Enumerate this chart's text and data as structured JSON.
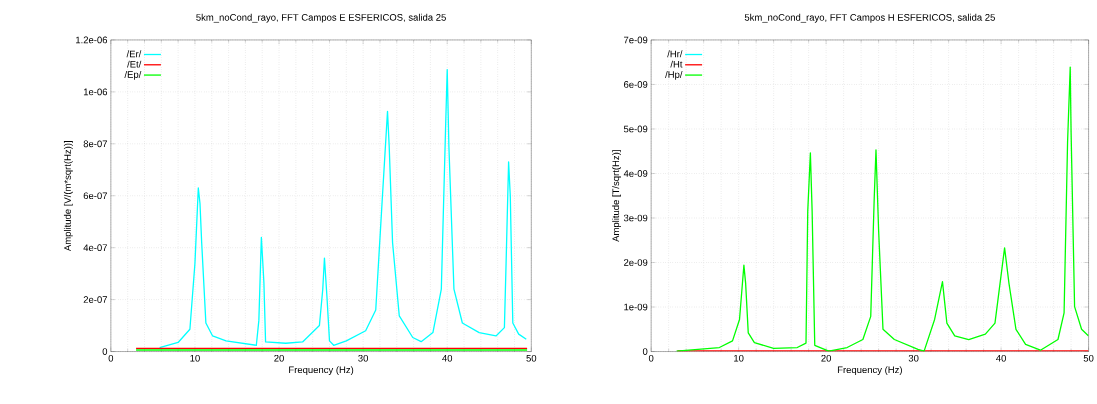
{
  "chart_data": [
    {
      "type": "line",
      "title": "5km_noCond_rayo, FFT Campos E ESFERICOS, salida 25",
      "xlabel": "Frequency (Hz)",
      "ylabel": "Amplitude [V/(m*sqrt(Hz))]",
      "xlim": [
        0,
        50
      ],
      "xticks": [
        0,
        10,
        20,
        30,
        40,
        50
      ],
      "ylim": [
        0,
        1.2e-06
      ],
      "yticks": [
        0,
        {
          "value": 2e-07,
          "label": "2e-07"
        },
        {
          "value": 4e-07,
          "label": "4e-07"
        },
        {
          "value": 6e-07,
          "label": "6e-07"
        },
        {
          "value": 8e-07,
          "label": "8e-07"
        },
        {
          "value": 1e-06,
          "label": "1e-06"
        },
        {
          "value": 1.2e-06,
          "label": "1.2e-06"
        }
      ],
      "grid": true,
      "legend": "top left",
      "series": [
        {
          "name": "/Er/",
          "color": "#00ffff",
          "x": [
            5.8,
            8,
            9.4,
            10.0,
            10.4,
            10.6,
            10.8,
            11.3,
            12.1,
            13.7,
            17.3,
            17.6,
            17.9,
            18.2,
            18.4,
            20.8,
            22.8,
            24.8,
            25.2,
            25.4,
            25.7,
            26.0,
            26.5,
            28.0,
            30.3,
            31.5,
            32.3,
            32.9,
            33.1,
            33.5,
            34.3,
            35.9,
            36.9,
            38.3,
            39.3,
            39.8,
            40.0,
            40.2,
            40.8,
            41.8,
            43.8,
            45.8,
            46.8,
            47.0,
            47.3,
            47.5,
            47.8,
            48.5,
            49.4
          ],
          "values": [
            1.5e-08,
            3.5e-08,
            8.6e-08,
            3.4e-07,
            6.3e-07,
            5.7e-07,
            4.2e-07,
            1.1e-07,
            6e-08,
            4.1e-08,
            2.4e-08,
            1.2e-07,
            4.4e-07,
            2.65e-07,
            3.7e-08,
            3.2e-08,
            3.7e-08,
            1e-07,
            2.4e-07,
            3.6e-07,
            2.1e-07,
            4.1e-08,
            2.4e-08,
            4.1e-08,
            8e-08,
            1.6e-07,
            6e-07,
            9.25e-07,
            7.9e-07,
            4.2e-07,
            1.37e-07,
            5.4e-08,
            3.8e-08,
            7.3e-08,
            2.4e-07,
            8.55e-07,
            1.086e-06,
            7.9e-07,
            2.4e-07,
            1.1e-07,
            7.3e-08,
            6e-08,
            9.2e-08,
            3.4e-07,
            7.3e-07,
            6e-07,
            1.1e-07,
            6.7e-08,
            4.7e-08
          ]
        },
        {
          "name": "/Et/",
          "color": "#ff0000",
          "x": [
            3,
            49.5
          ],
          "values": [
            1.2e-08,
            1.2e-08
          ]
        },
        {
          "name": "/Ep/",
          "color": "#00ff00",
          "x": [
            3,
            49.5
          ],
          "values": [
            6e-09,
            6e-09
          ]
        }
      ]
    },
    {
      "type": "line",
      "title": "5km_noCond_rayo, FFT Campos H ESFERICOS, salida 25",
      "xlabel": "Frequency (Hz)",
      "ylabel": "Amplitude [T/sqrt(Hz)]",
      "xlim": [
        0,
        50
      ],
      "xticks": [
        0,
        10,
        20,
        30,
        40,
        50
      ],
      "ylim": [
        0,
        7e-09
      ],
      "yticks": [
        0,
        {
          "value": 1e-09,
          "label": "1e-09"
        },
        {
          "value": 2e-09,
          "label": "2e-09"
        },
        {
          "value": 3e-09,
          "label": "3e-09"
        },
        {
          "value": 4e-09,
          "label": "4e-09"
        },
        {
          "value": 5e-09,
          "label": "5e-09"
        },
        {
          "value": 6e-09,
          "label": "6e-09"
        },
        {
          "value": 7e-09,
          "label": "7e-09"
        }
      ],
      "grid": true,
      "legend": "top left",
      "series": [
        {
          "name": "/Hr/",
          "color": "#00ffff"
        },
        {
          "name": "/Ht",
          "color": "#ff0000",
          "x": [
            3,
            50
          ],
          "values": [
            1.5e-11,
            1.5e-11
          ]
        },
        {
          "name": "/Hp/",
          "color": "#00ff00",
          "x": [
            2.9,
            7.8,
            9.3,
            10.1,
            10.6,
            10.8,
            11.1,
            11.8,
            14.0,
            16.7,
            17.7,
            17.9,
            18.2,
            18.4,
            18.7,
            20.3,
            22.4,
            24.2,
            25.1,
            25.5,
            25.7,
            26.0,
            26.5,
            27.8,
            30.5,
            31.2,
            32.4,
            33.3,
            33.8,
            34.7,
            36.3,
            38.2,
            39.3,
            40.4,
            40.9,
            41.7,
            42.8,
            44.5,
            46.5,
            47.2,
            47.6,
            47.9,
            48.0,
            48.4,
            49.2,
            50.0
          ],
          "values": [
            1e-11,
            9e-11,
            2.4e-10,
            7.2e-10,
            1.94e-09,
            1.53e-09,
            4.2e-10,
            2e-10,
            7e-11,
            9e-11,
            1.9e-10,
            3.16e-09,
            4.46e-09,
            3.16e-09,
            1.4e-10,
            1e-11,
            9e-11,
            2.7e-10,
            7.9e-10,
            3.46e-09,
            4.53e-09,
            2.72e-09,
            5e-10,
            2.7e-10,
            5e-11,
            1e-11,
            7.2e-10,
            1.57e-09,
            6.4e-10,
            3.5e-10,
            2.7e-10,
            3.9e-10,
            6.4e-10,
            2.33e-09,
            1.53e-09,
            5e-10,
            1.6e-10,
            3e-11,
            2.7e-10,
            8.7e-10,
            4.72e-09,
            6.39e-09,
            4.94e-09,
            1.01e-09,
            5e-10,
            3.5e-10
          ]
        }
      ]
    }
  ]
}
